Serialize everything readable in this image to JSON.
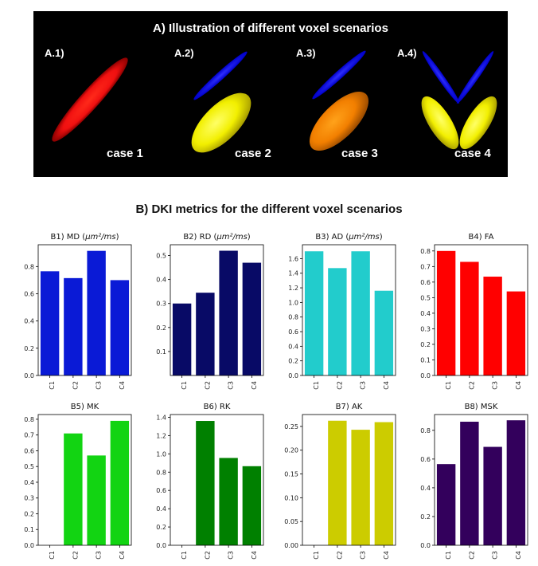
{
  "panel_a": {
    "title": "A) Illustration of different voxel scenarios",
    "labels": [
      "A.1)",
      "A.2)",
      "A.3)",
      "A.4)"
    ],
    "cases": [
      "case 1",
      "case 2",
      "case 3",
      "case 4"
    ]
  },
  "panel_b_title": "B) DKI metrics for the different voxel scenarios",
  "chart_data": [
    {
      "type": "bar",
      "title": "B1) MD (μm²/ms)",
      "title_main": "B1) MD (",
      "title_unit": "μm²/ms",
      "title_end": ")",
      "categories": [
        "C1",
        "C2",
        "C3",
        "C4"
      ],
      "values": [
        0.765,
        0.715,
        0.915,
        0.7
      ],
      "ylim": [
        0,
        0.96
      ],
      "yticks": [
        "0.0",
        "0.2",
        "0.4",
        "0.6",
        "0.8"
      ],
      "color": "#0a1ad6"
    },
    {
      "type": "bar",
      "title": "B2) RD (μm²/ms)",
      "title_main": "B2) RD (",
      "title_unit": "μm²/ms",
      "title_end": ")",
      "categories": [
        "C1",
        "C2",
        "C3",
        "C4"
      ],
      "values": [
        0.3,
        0.345,
        0.52,
        0.47
      ],
      "ylim": [
        0,
        0.545
      ],
      "yticks": [
        "0.1",
        "0.2",
        "0.3",
        "0.4",
        "0.5"
      ],
      "color": "#080a66"
    },
    {
      "type": "bar",
      "title": "B3) AD (μm²/ms)",
      "title_main": "B3) AD (",
      "title_unit": "μm²/ms",
      "title_end": ")",
      "categories": [
        "C1",
        "C2",
        "C3",
        "C4"
      ],
      "values": [
        1.7,
        1.47,
        1.7,
        1.16
      ],
      "ylim": [
        0,
        1.79
      ],
      "yticks": [
        "0.0",
        "0.2",
        "0.4",
        "0.6",
        "0.8",
        "1.0",
        "1.2",
        "1.4",
        "1.6"
      ],
      "color": "#22cccc"
    },
    {
      "type": "bar",
      "title": "B4) FA",
      "categories": [
        "C1",
        "C2",
        "C3",
        "C4"
      ],
      "values": [
        0.8,
        0.73,
        0.635,
        0.54
      ],
      "ylim": [
        0,
        0.84
      ],
      "yticks": [
        "0.0",
        "0.1",
        "0.2",
        "0.3",
        "0.4",
        "0.5",
        "0.6",
        "0.7",
        "0.8"
      ],
      "color": "#ff0000"
    },
    {
      "type": "bar",
      "title": "B5) MK",
      "categories": [
        "C1",
        "C2",
        "C3",
        "C4"
      ],
      "values": [
        0,
        0.71,
        0.57,
        0.79
      ],
      "ylim": [
        0,
        0.83
      ],
      "yticks": [
        "0.0",
        "0.1",
        "0.2",
        "0.3",
        "0.4",
        "0.5",
        "0.6",
        "0.7",
        "0.8"
      ],
      "color": "#12d412"
    },
    {
      "type": "bar",
      "title": "B6) RK",
      "categories": [
        "C1",
        "C2",
        "C3",
        "C4"
      ],
      "values": [
        0,
        1.36,
        0.955,
        0.865
      ],
      "ylim": [
        0,
        1.43
      ],
      "yticks": [
        "0.0",
        "0.2",
        "0.4",
        "0.6",
        "0.8",
        "1.0",
        "1.2",
        "1.4"
      ],
      "color": "#008000"
    },
    {
      "type": "bar",
      "title": "B7) AK",
      "categories": [
        "C1",
        "C2",
        "C3",
        "C4"
      ],
      "values": [
        0,
        0.262,
        0.243,
        0.259
      ],
      "ylim": [
        0,
        0.275
      ],
      "yticks": [
        "0.00",
        "0.05",
        "0.10",
        "0.15",
        "0.20",
        "0.25"
      ],
      "color": "#cccc00"
    },
    {
      "type": "bar",
      "title": "B8) MSK",
      "categories": [
        "C1",
        "C2",
        "C3",
        "C4"
      ],
      "values": [
        0.565,
        0.86,
        0.685,
        0.87
      ],
      "ylim": [
        0,
        0.91
      ],
      "yticks": [
        "0.0",
        "0.2",
        "0.4",
        "0.6",
        "0.8"
      ],
      "color": "#33005c"
    }
  ]
}
